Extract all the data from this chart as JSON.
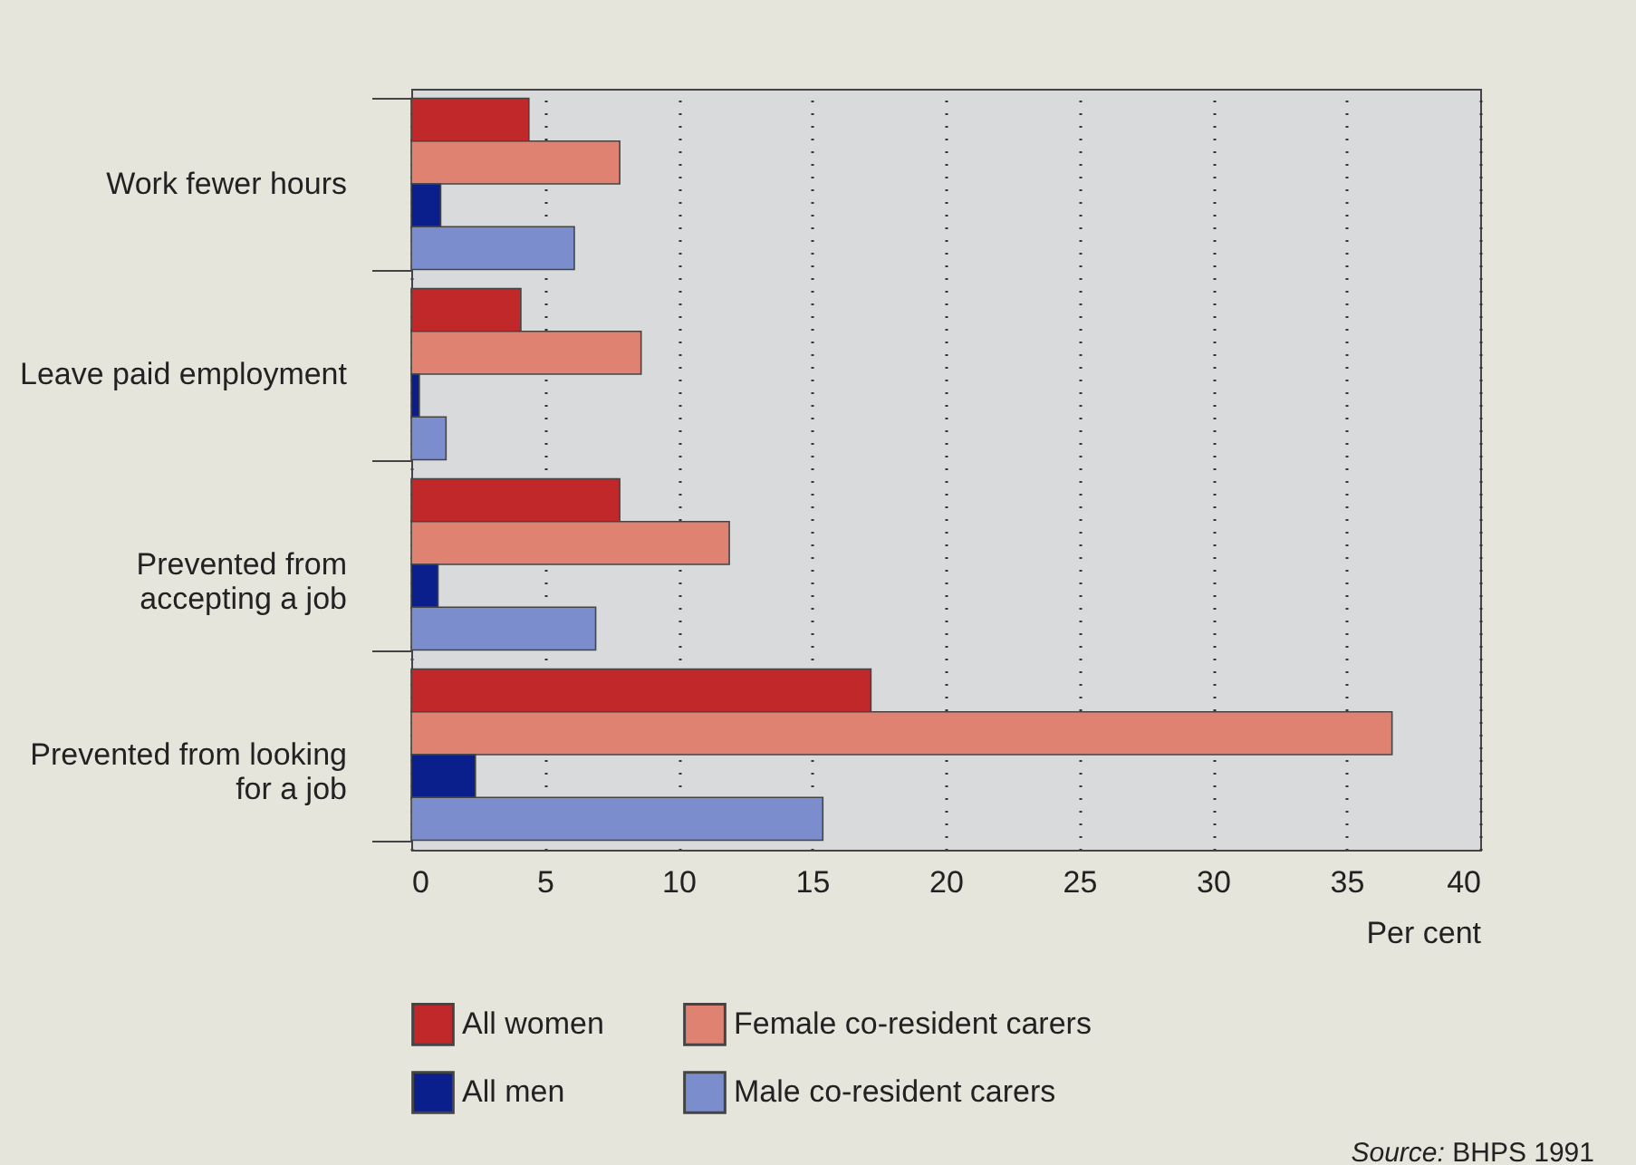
{
  "chart_data": {
    "type": "bar",
    "orientation": "horizontal",
    "xlabel": "Per cent",
    "categories": [
      "Work fewer hours",
      "Leave paid employment",
      "Prevented from accepting a job",
      "Prevented from looking for a job"
    ],
    "series": [
      {
        "name": "All women",
        "color": "#c0282a",
        "values": [
          4.4,
          4.1,
          7.8,
          17.2
        ]
      },
      {
        "name": "Female co-resident carers",
        "color": "#e08272",
        "values": [
          7.8,
          8.6,
          11.9,
          36.7
        ]
      },
      {
        "name": "All men",
        "color": "#0a1f8c",
        "values": [
          1.1,
          0.3,
          1.0,
          2.4
        ]
      },
      {
        "name": "Male co-resident carers",
        "color": "#7b8dcc",
        "values": [
          6.1,
          1.3,
          6.9,
          15.4
        ]
      }
    ],
    "xlim": [
      0,
      40
    ],
    "xticks": [
      0,
      5,
      10,
      15,
      20,
      25,
      30,
      35,
      40
    ],
    "grid": "x",
    "legend": "bottom",
    "annotations": [
      "Source: BHPS 1991"
    ]
  }
}
